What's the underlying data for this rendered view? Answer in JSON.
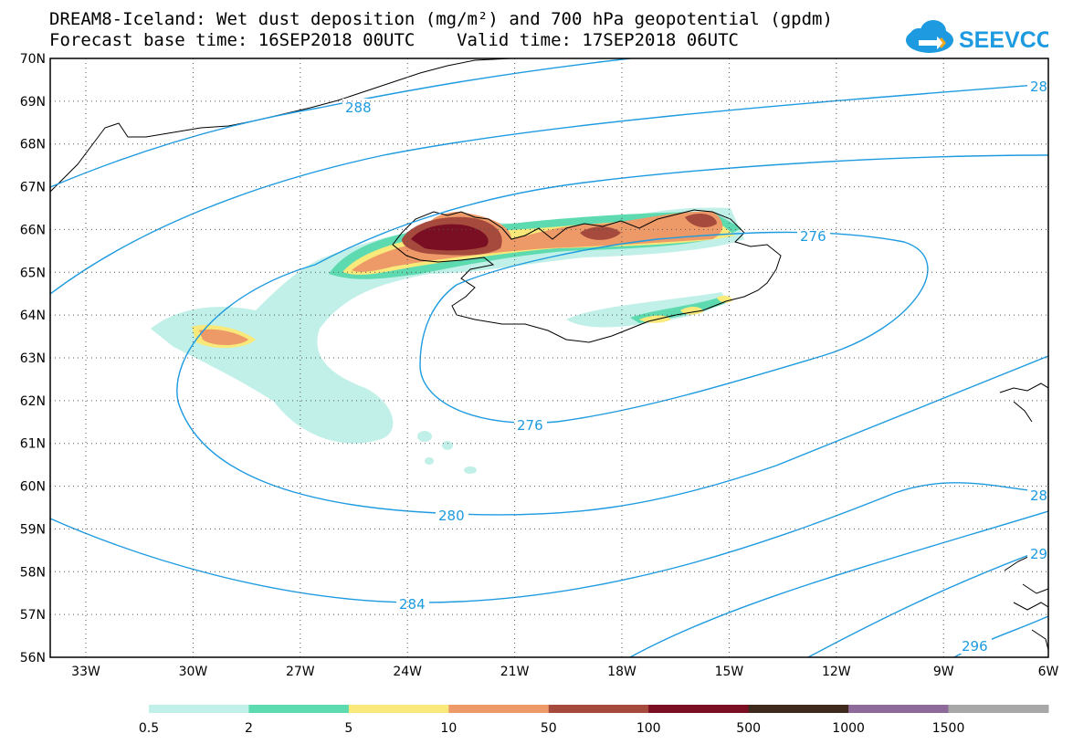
{
  "header": {
    "title_line1": "DREAM8-Iceland: Wet dust deposition (mg/m²) and 700 hPa geopotential (gpdm)",
    "title_line2": "Forecast base time: 16SEP2018 00UTC    Valid time: 17SEP2018 06UTC"
  },
  "logo": {
    "text": "SEEVCCC",
    "color": "#1e9be0"
  },
  "map": {
    "lat_labels": [
      "70N",
      "69N",
      "68N",
      "67N",
      "66N",
      "65N",
      "64N",
      "63N",
      "62N",
      "61N",
      "60N",
      "59N",
      "58N",
      "57N",
      "56N"
    ],
    "lon_labels": [
      "33W",
      "30W",
      "27W",
      "24W",
      "21W",
      "18W",
      "15W",
      "12W",
      "9W",
      "6W"
    ],
    "contour_labels": [
      "288",
      "28",
      "276",
      "276",
      "280",
      "284",
      "28",
      "29",
      "296"
    ],
    "contour_color": "#1e9be0"
  },
  "legend": {
    "ticks": [
      "0.5",
      "2",
      "5",
      "10",
      "50",
      "100",
      "500",
      "1000",
      "1500"
    ],
    "colors": [
      "#c0f0e8",
      "#5ddab0",
      "#f8e97a",
      "#ed9a68",
      "#a64a3e",
      "#7a0e22",
      "#3d2a1c",
      "#8e6a9a",
      "#a8a8a8"
    ]
  }
}
